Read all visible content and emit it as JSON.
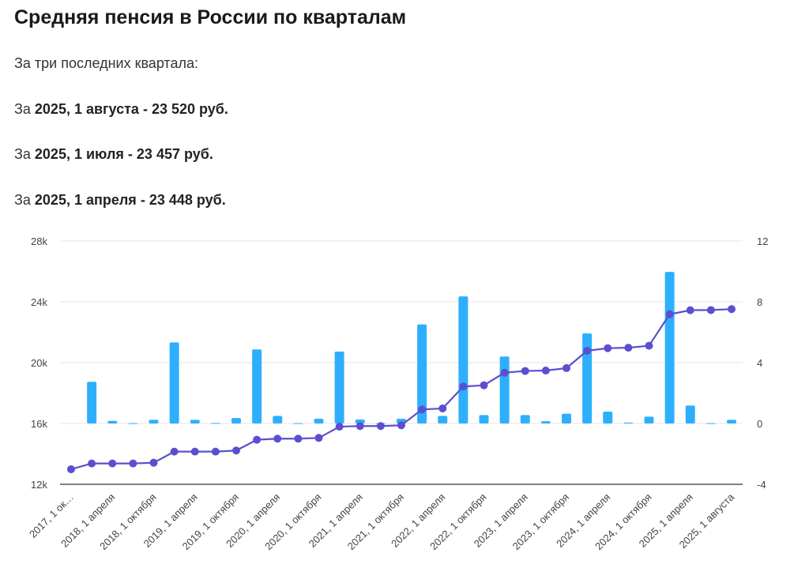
{
  "header": {
    "title": "Средняя пенсия в России по кварталам",
    "intro": "За три последних квартала:",
    "rows": [
      {
        "prefix": "За",
        "period": "2025, 1 августа",
        "sep": "-",
        "amount": "23 520 руб."
      },
      {
        "prefix": "За",
        "period": "2025, 1 июля",
        "sep": "-",
        "amount": "23 457 руб."
      },
      {
        "prefix": "За",
        "period": "2025, 1 апреля",
        "sep": "-",
        "amount": "23 448 руб."
      }
    ]
  },
  "chart_data": {
    "type": "bar+line",
    "x_tick_labels": [
      "2017, 1 ок…",
      "2018, 1 апреля",
      "2018, 1 октября",
      "2019, 1 апреля",
      "2019, 1 октября",
      "2020, 1 апреля",
      "2020, 1 октября",
      "2021, 1 апреля",
      "2021, 1 октября",
      "2022, 1 апреля",
      "2022, 1 октября",
      "2023, 1 апреля",
      "2023, 1 октября",
      "2024, 1 апреля",
      "2024, 1 октября",
      "2025, 1 апреля",
      "2025, 1 августа"
    ],
    "left_axis": {
      "ylim": [
        12000,
        28000
      ],
      "ticks": [
        "12k",
        "16k",
        "20k",
        "24k",
        "28k"
      ],
      "tick_values": [
        12000,
        16000,
        20000,
        24000,
        28000
      ]
    },
    "right_axis": {
      "ylim": [
        -4,
        12
      ],
      "ticks": [
        "-4",
        "0",
        "4",
        "8",
        "12"
      ],
      "tick_values": [
        -4,
        0,
        4,
        8,
        12
      ]
    },
    "series": [
      {
        "name": "pension",
        "type": "line",
        "axis": "left",
        "color": "#5b4fcf",
        "values": [
          12990,
          13370,
          13370,
          13370,
          13420,
          14150,
          14150,
          14150,
          14220,
          14930,
          15000,
          15000,
          15050,
          15790,
          15830,
          15830,
          15880,
          16920,
          16990,
          18430,
          18510,
          19340,
          19450,
          19480,
          19640,
          20780,
          20950,
          20980,
          21110,
          23180,
          23448,
          23457,
          23520
        ]
      },
      {
        "name": "change_percent",
        "type": "bar",
        "axis": "right",
        "color": "#2eaffe",
        "values": [
          0,
          2.74,
          0.17,
          0.02,
          0.24,
          5.33,
          0.24,
          0.03,
          0.36,
          4.87,
          0.5,
          0.02,
          0.31,
          4.73,
          0.26,
          0.02,
          0.31,
          6.51,
          0.5,
          8.36,
          0.55,
          4.4,
          0.55,
          0.15,
          0.64,
          5.92,
          0.78,
          0.06,
          0.45,
          9.97,
          1.18,
          0.02,
          0.24
        ]
      }
    ],
    "grid": true
  }
}
